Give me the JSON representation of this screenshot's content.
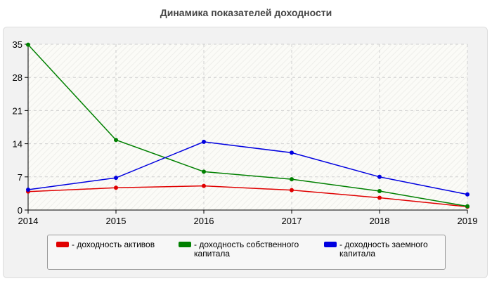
{
  "chart_data": {
    "type": "line",
    "title": "Динамика показателей доходности",
    "xlabel": "",
    "ylabel": "",
    "x": [
      "2014",
      "2015",
      "2016",
      "2017",
      "2018",
      "2019"
    ],
    "y_ticks": [
      "0",
      "7",
      "14",
      "21",
      "28",
      "35"
    ],
    "ylim": [
      0,
      35
    ],
    "grid": true,
    "legend_position": "bottom",
    "series": [
      {
        "name": "- доходность активов",
        "color": "#e00000",
        "values": [
          3.9,
          4.7,
          5.1,
          4.2,
          2.6,
          0.7
        ]
      },
      {
        "name": "- доходность собственного капитала",
        "color": "#008000",
        "values": [
          34.9,
          14.8,
          8.1,
          6.5,
          4.0,
          0.8
        ]
      },
      {
        "name": "- доходность заемного капитала",
        "color": "#0000e0",
        "values": [
          4.3,
          6.8,
          14.4,
          12.1,
          7.0,
          3.3
        ]
      }
    ]
  }
}
